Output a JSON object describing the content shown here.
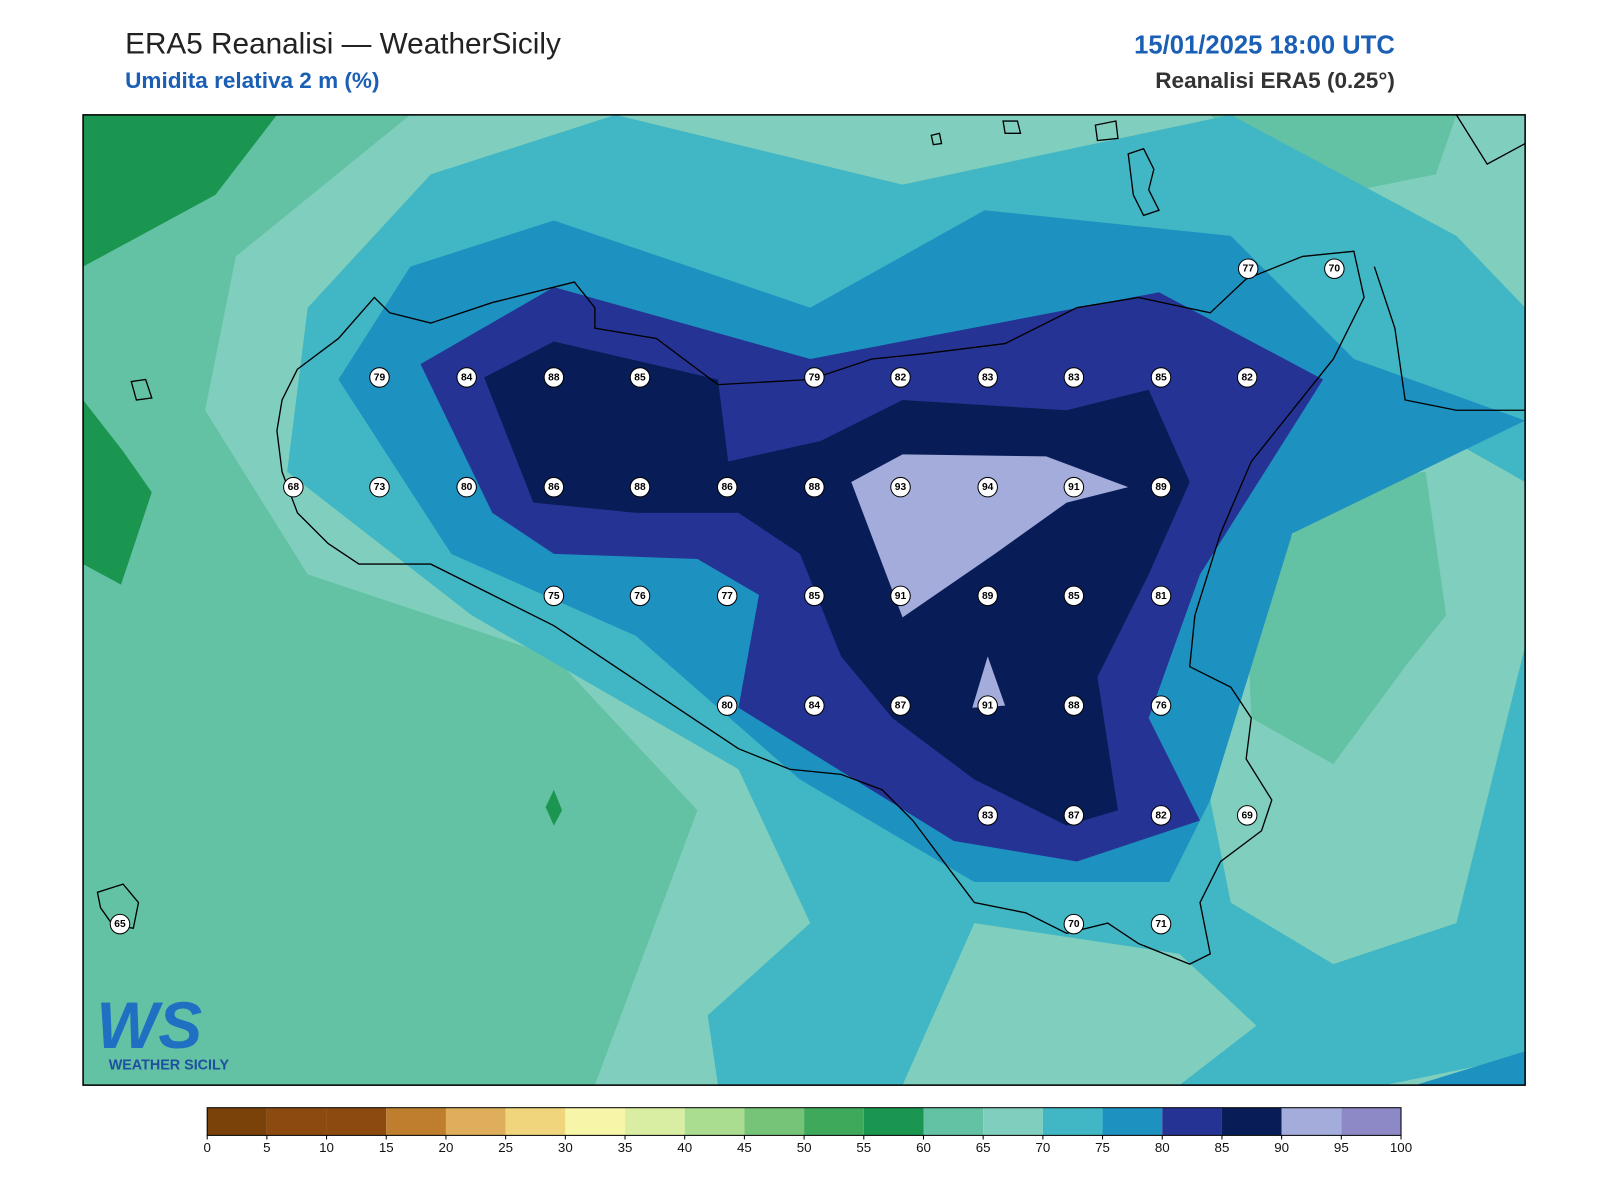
{
  "header": {
    "title": "ERA5 Reanalisi — WeatherSicily",
    "subtitle": "Umidita relativa 2 m (%)",
    "date": "15/01/2025 18:00 UTC",
    "source": "Reanalisi ERA5 (0.25°)"
  },
  "stations": [
    77,
    70,
    79,
    84,
    88,
    85,
    79,
    82,
    83,
    83,
    85,
    82,
    68,
    73,
    80,
    86,
    88,
    86,
    88,
    93,
    94,
    91,
    89,
    75,
    76,
    77,
    85,
    91,
    89,
    85,
    81,
    80,
    84,
    87,
    91,
    88,
    76,
    83,
    87,
    82,
    69,
    65,
    70,
    71
  ],
  "colorbar": {
    "ticks": [
      0,
      5,
      10,
      15,
      20,
      25,
      30,
      35,
      40,
      45,
      50,
      55,
      60,
      65,
      70,
      75,
      80,
      85,
      90,
      95,
      100
    ],
    "colors": [
      "#7a4208",
      "#8c4a0e",
      "#8c4a0e",
      "#bf7e2e",
      "#dfae5b",
      "#f0d57c",
      "#f6f5a8",
      "#d9eea2",
      "#aadd8f",
      "#76c477",
      "#3ea95b",
      "#1a9650",
      "#63c2a3",
      "#80cfbe",
      "#41b6c4",
      "#1d91c0",
      "#253494",
      "#081d58",
      "#a4acdb",
      "#8d89c7"
    ]
  },
  "logo": {
    "mark": "WS",
    "text": "WEATHER SICILY"
  }
}
